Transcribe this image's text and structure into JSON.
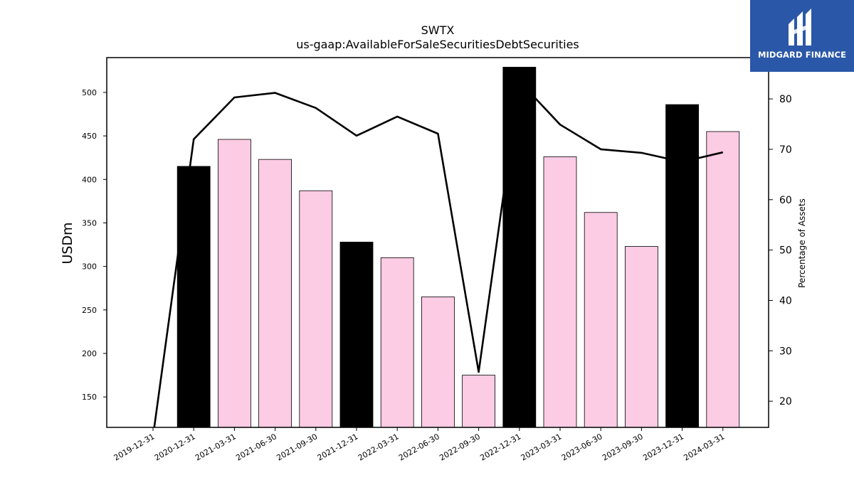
{
  "chart_data": {
    "type": "bar",
    "title": "SWTX",
    "subtitle": "us-gaap:AvailableForSaleSecuritiesDebtSecurities",
    "ylabel": "USDm",
    "y2label": "Percentage of Assets",
    "categories": [
      "2019-12-31",
      "2020-12-31",
      "2021-03-31",
      "2021-06-30",
      "2021-09-30",
      "2021-12-31",
      "2022-03-31",
      "2022-06-30",
      "2022-09-30",
      "2022-12-31",
      "2023-03-31",
      "2023-06-30",
      "2023-09-30",
      "2023-12-31",
      "2024-03-31"
    ],
    "series": [
      {
        "kind": "bar",
        "values": [
          null,
          415,
          446,
          423,
          387,
          328,
          310,
          265,
          175,
          529,
          426,
          362,
          323,
          486,
          455
        ],
        "colors": [
          "#000000",
          "#000000",
          "#fccbe4",
          "#fccbe4",
          "#fccbe4",
          "#000000",
          "#fccbe4",
          "#fccbe4",
          "#fccbe4",
          "#000000",
          "#fccbe4",
          "#fccbe4",
          "#fccbe4",
          "#000000",
          "#fccbe4"
        ]
      },
      {
        "kind": "line",
        "axis": "right",
        "values": [
          13,
          72,
          80.3,
          81.2,
          78.2,
          72.7,
          76.5,
          73.1,
          25.8,
          83.5,
          74.9,
          70,
          69.3,
          67.5,
          69.4
        ],
        "color": "#000000"
      }
    ],
    "ylim": [
      115,
      540
    ],
    "yticks": [
      150,
      200,
      250,
      300,
      350,
      400,
      450,
      500
    ],
    "y2lim": [
      14.8,
      88.2
    ],
    "y2ticks": [
      20,
      30,
      40,
      50,
      60,
      70,
      80
    ]
  },
  "logo": {
    "text": "MIDGARD FINANCE",
    "background": "#2a57a8"
  }
}
